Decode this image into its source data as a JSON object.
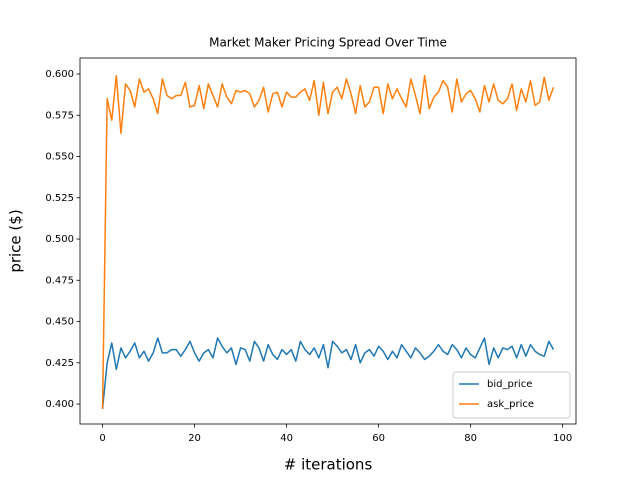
{
  "chart_data": {
    "type": "line",
    "title": "Market Maker Pricing Spread Over Time",
    "x_label": "# iterations",
    "y_label": "price ($)",
    "x": [
      0,
      1,
      2,
      3,
      4,
      5,
      6,
      7,
      8,
      9,
      10,
      11,
      12,
      13,
      14,
      15,
      16,
      17,
      18,
      19,
      20,
      21,
      22,
      23,
      24,
      25,
      26,
      27,
      28,
      29,
      30,
      31,
      32,
      33,
      34,
      35,
      36,
      37,
      38,
      39,
      40,
      41,
      42,
      43,
      44,
      45,
      46,
      47,
      48,
      49,
      50,
      51,
      52,
      53,
      54,
      55,
      56,
      57,
      58,
      59,
      60,
      61,
      62,
      63,
      64,
      65,
      66,
      67,
      68,
      69,
      70,
      71,
      72,
      73,
      74,
      75,
      76,
      77,
      78,
      79,
      80,
      81,
      82,
      83,
      84,
      85,
      86,
      87,
      88,
      89,
      90,
      91,
      92,
      93,
      94,
      95,
      96,
      97,
      98
    ],
    "series": [
      {
        "name": "bid_price",
        "color": "#1f77b4",
        "values": [
          0.397,
          0.425,
          0.437,
          0.421,
          0.434,
          0.428,
          0.432,
          0.437,
          0.428,
          0.432,
          0.426,
          0.431,
          0.44,
          0.431,
          0.431,
          0.433,
          0.433,
          0.429,
          0.433,
          0.438,
          0.431,
          0.426,
          0.431,
          0.433,
          0.428,
          0.44,
          0.435,
          0.431,
          0.434,
          0.424,
          0.434,
          0.433,
          0.426,
          0.438,
          0.434,
          0.426,
          0.436,
          0.43,
          0.427,
          0.433,
          0.43,
          0.433,
          0.426,
          0.438,
          0.433,
          0.43,
          0.434,
          0.428,
          0.436,
          0.422,
          0.438,
          0.435,
          0.431,
          0.433,
          0.427,
          0.436,
          0.425,
          0.431,
          0.433,
          0.429,
          0.435,
          0.432,
          0.427,
          0.432,
          0.428,
          0.436,
          0.432,
          0.428,
          0.434,
          0.431,
          0.427,
          0.429,
          0.432,
          0.436,
          0.432,
          0.43,
          0.436,
          0.433,
          0.428,
          0.434,
          0.43,
          0.428,
          0.434,
          0.44,
          0.424,
          0.434,
          0.428,
          0.434,
          0.433,
          0.435,
          0.428,
          0.436,
          0.429,
          0.436,
          0.432,
          0.43,
          0.429,
          0.438,
          0.433
        ]
      },
      {
        "name": "ask_price",
        "color": "#ff7f0e",
        "values": [
          0.397,
          0.585,
          0.572,
          0.599,
          0.564,
          0.594,
          0.59,
          0.58,
          0.597,
          0.589,
          0.591,
          0.585,
          0.576,
          0.597,
          0.587,
          0.585,
          0.587,
          0.587,
          0.595,
          0.58,
          0.581,
          0.593,
          0.579,
          0.594,
          0.587,
          0.58,
          0.594,
          0.586,
          0.582,
          0.59,
          0.589,
          0.59,
          0.588,
          0.58,
          0.584,
          0.592,
          0.577,
          0.588,
          0.589,
          0.58,
          0.589,
          0.586,
          0.586,
          0.589,
          0.591,
          0.584,
          0.596,
          0.575,
          0.595,
          0.576,
          0.589,
          0.592,
          0.585,
          0.597,
          0.588,
          0.576,
          0.593,
          0.58,
          0.583,
          0.592,
          0.592,
          0.576,
          0.594,
          0.585,
          0.591,
          0.585,
          0.58,
          0.597,
          0.587,
          0.576,
          0.599,
          0.579,
          0.586,
          0.589,
          0.596,
          0.592,
          0.577,
          0.597,
          0.583,
          0.588,
          0.59,
          0.585,
          0.577,
          0.593,
          0.583,
          0.594,
          0.584,
          0.582,
          0.585,
          0.594,
          0.578,
          0.591,
          0.583,
          0.596,
          0.581,
          0.583,
          0.598,
          0.584,
          0.592
        ]
      }
    ],
    "xlim": [
      -4.9,
      102.9
    ],
    "xticks": [
      0,
      20,
      40,
      60,
      80,
      100
    ],
    "ylim": [
      0.3879,
      0.6097
    ],
    "yticks": [
      {
        "value": 0.4,
        "label": "0.400"
      },
      {
        "value": 0.425,
        "label": "0.425"
      },
      {
        "value": 0.45,
        "label": "0.450"
      },
      {
        "value": 0.475,
        "label": "0.475"
      },
      {
        "value": 0.5,
        "label": "0.500"
      },
      {
        "value": 0.525,
        "label": "0.525"
      },
      {
        "value": 0.55,
        "label": "0.550"
      },
      {
        "value": 0.575,
        "label": "0.575"
      },
      {
        "value": 0.6,
        "label": "0.600"
      }
    ],
    "grid": false,
    "legend": "lower right"
  }
}
